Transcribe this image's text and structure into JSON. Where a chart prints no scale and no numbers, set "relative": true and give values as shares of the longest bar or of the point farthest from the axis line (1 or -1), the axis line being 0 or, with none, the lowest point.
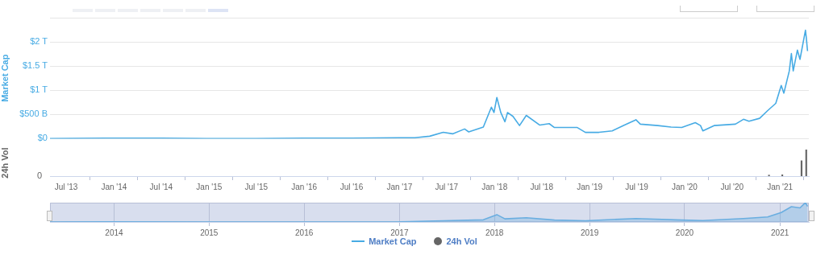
{
  "chart_data": [
    {
      "type": "line",
      "ylabel": "Market Cap",
      "legend": "bottom",
      "grid": "y",
      "tick_labels": "y",
      "xlim": [
        "2013-04-30",
        "2021-04-22"
      ],
      "ylim": [
        0,
        2500000000000
      ],
      "yticks": [
        {
          "value": 0,
          "label": "$0"
        },
        {
          "value": 500000000000,
          "label": "$500 B"
        },
        {
          "value": 1000000000000,
          "label": "$1 T"
        },
        {
          "value": 1500000000000,
          "label": "$1.5 T"
        },
        {
          "value": 2000000000000,
          "label": "$2 T"
        },
        {
          "value": 2500000000000,
          "label": null
        }
      ],
      "series": [
        {
          "name": "Market Cap",
          "color": "#47abe4",
          "x": [
            "2013-04-30",
            "2013-11-30",
            "2014-01-15",
            "2014-07-01",
            "2015-01-15",
            "2015-07-01",
            "2016-01-01",
            "2016-07-01",
            "2017-01-01",
            "2017-03-01",
            "2017-04-27",
            "2017-06-18",
            "2017-07-24",
            "2017-09-08",
            "2017-09-24",
            "2017-11-19",
            "2017-12-20",
            "2017-12-30",
            "2018-01-10",
            "2018-01-25",
            "2018-02-10",
            "2018-02-20",
            "2018-03-13",
            "2018-04-07",
            "2018-05-03",
            "2018-06-24",
            "2018-07-30",
            "2018-08-19",
            "2018-11-15",
            "2018-12-16",
            "2019-02-06",
            "2019-03-29",
            "2019-05-15",
            "2019-06-28",
            "2019-07-15",
            "2019-09-20",
            "2019-11-10",
            "2019-12-21",
            "2020-02-11",
            "2020-03-02",
            "2020-03-11",
            "2020-04-23",
            "2020-07-14",
            "2020-08-14",
            "2020-09-04",
            "2020-10-15",
            "2020-11-15",
            "2020-12-16",
            "2021-01-06",
            "2021-01-16",
            "2021-02-06",
            "2021-02-14",
            "2021-02-21",
            "2021-03-09",
            "2021-03-19",
            "2021-04-09",
            "2021-04-12",
            "2021-04-17"
          ],
          "values": [
            0,
            10000000000,
            10000000000,
            10000000000,
            0,
            0,
            10000000000,
            10000000000,
            20000000000,
            20000000000,
            50000000000,
            130000000000,
            100000000000,
            200000000000,
            140000000000,
            240000000000,
            650000000000,
            540000000000,
            850000000000,
            540000000000,
            350000000000,
            540000000000,
            460000000000,
            270000000000,
            480000000000,
            280000000000,
            310000000000,
            230000000000,
            230000000000,
            130000000000,
            130000000000,
            160000000000,
            280000000000,
            390000000000,
            300000000000,
            270000000000,
            240000000000,
            230000000000,
            330000000000,
            270000000000,
            160000000000,
            270000000000,
            300000000000,
            400000000000,
            360000000000,
            420000000000,
            580000000000,
            730000000000,
            1100000000000,
            940000000000,
            1400000000000,
            1760000000000,
            1400000000000,
            1830000000000,
            1640000000000,
            2240000000000,
            2100000000000,
            1810000000000
          ]
        }
      ]
    },
    {
      "type": "bar",
      "ylabel": "24h Vol",
      "relative": true,
      "legend": "bottom",
      "xlim": [
        "2013-04-30",
        "2021-04-22"
      ],
      "xticks": [
        {
          "value": "2013-07-01",
          "label": "Jul '13"
        },
        {
          "value": "2014-01-01",
          "label": "Jan '14"
        },
        {
          "value": "2014-07-01",
          "label": "Jul '14"
        },
        {
          "value": "2015-01-01",
          "label": "Jan '15"
        },
        {
          "value": "2015-07-01",
          "label": "Jul '15"
        },
        {
          "value": "2016-01-01",
          "label": "Jan '16"
        },
        {
          "value": "2016-07-01",
          "label": "Jul '16"
        },
        {
          "value": "2017-01-01",
          "label": "Jan '17"
        },
        {
          "value": "2017-07-01",
          "label": "Jul '17"
        },
        {
          "value": "2018-01-01",
          "label": "Jan '18"
        },
        {
          "value": "2018-07-01",
          "label": "Jul '18"
        },
        {
          "value": "2019-01-01",
          "label": "Jan '19"
        },
        {
          "value": "2019-07-01",
          "label": "Jul '19"
        },
        {
          "value": "2020-01-01",
          "label": "Jan '20"
        },
        {
          "value": "2020-07-01",
          "label": "Jul '20"
        },
        {
          "value": "2021-01-01",
          "label": "Jan '21"
        }
      ],
      "annotations": [
        "0"
      ],
      "series": [
        {
          "name": "24h Vol",
          "color": "#666666",
          "x": [
            "2020-11-20",
            "2021-01-10",
            "2021-03-25",
            "2021-04-12"
          ],
          "values": [
            0.04,
            0.05,
            0.58,
            1
          ]
        }
      ]
    },
    {
      "type": "area",
      "relative": true,
      "grid": "x",
      "xlim": [
        "2013-04-30",
        "2021-04-22"
      ],
      "xticks": [
        {
          "value": "2014-01-01",
          "label": "2014"
        },
        {
          "value": "2015-01-01",
          "label": "2015"
        },
        {
          "value": "2016-01-01",
          "label": "2016"
        },
        {
          "value": "2017-01-01",
          "label": "2017"
        },
        {
          "value": "2018-01-01",
          "label": "2018"
        },
        {
          "value": "2019-01-01",
          "label": "2019"
        },
        {
          "value": "2020-01-01",
          "label": "2020"
        },
        {
          "value": "2021-01-01",
          "label": "2021"
        }
      ],
      "series": [
        {
          "color": "#6aaee0",
          "x": [
            "2013-04-30",
            "2013-11-30",
            "2015-01-15",
            "2017-01-01",
            "2017-06-18",
            "2017-11-19",
            "2018-01-10",
            "2018-02-10",
            "2018-05-03",
            "2018-08-19",
            "2018-12-16",
            "2019-06-28",
            "2019-12-21",
            "2020-03-11",
            "2020-08-14",
            "2020-11-15",
            "2021-01-06",
            "2021-02-14",
            "2021-03-19",
            "2021-04-09",
            "2021-04-17"
          ],
          "values": [
            0.001,
            0.006,
            0.002,
            0.008,
            0.06,
            0.11,
            0.38,
            0.16,
            0.22,
            0.1,
            0.06,
            0.18,
            0.1,
            0.07,
            0.18,
            0.26,
            0.49,
            0.79,
            0.73,
            1,
            0.81
          ]
        }
      ]
    }
  ]
}
